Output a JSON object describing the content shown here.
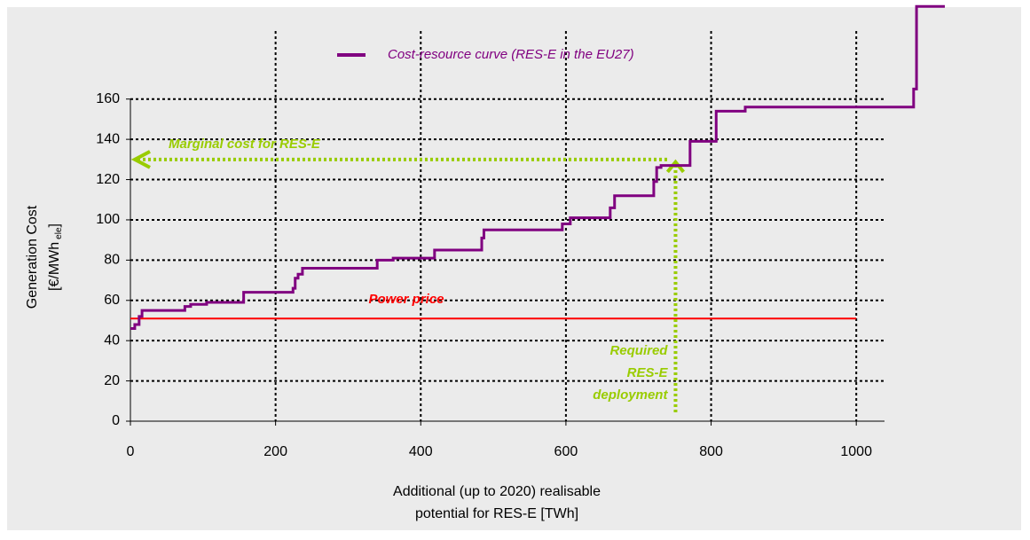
{
  "chart_data": {
    "type": "line",
    "step": "post",
    "y_label": {
      "line1": "Generation Cost",
      "unit_main": "[€/MWh",
      "unit_sub": "ele",
      "unit_end": "]"
    },
    "x_label": [
      "Additional (up to 2020) realisable",
      "potential for RES-E [TWh]"
    ],
    "x": [
      0,
      6,
      12,
      16,
      75,
      83,
      105,
      156,
      224,
      227,
      231,
      237,
      340,
      362,
      419,
      484,
      487,
      595,
      606,
      661,
      667,
      721,
      725,
      731,
      771,
      807,
      847,
      1079,
      1083,
      1122
    ],
    "series": [
      {
        "name": "Cost-resource curve (RES-E in the EU27)",
        "color": "#800080",
        "values": [
          46,
          48,
          52,
          55,
          57,
          58,
          59,
          64,
          66,
          71,
          73,
          76,
          80,
          81,
          85,
          91,
          95,
          98,
          101,
          106,
          112,
          119,
          126,
          127,
          139,
          154,
          156,
          165,
          206,
          206
        ]
      }
    ],
    "power_price": {
      "label": "Power price",
      "value": 51,
      "x_end": 1000,
      "color": "#ff0000"
    },
    "marginal_cost": {
      "label": "Marginal cost for RES-E",
      "value": 130,
      "color": "#99cc00"
    },
    "deployment": {
      "label": [
        "Required",
        "RES-E",
        "deployment"
      ],
      "value": 751,
      "color": "#99cc00"
    },
    "xlim": [
      0,
      1122
    ],
    "ylim": [
      0,
      207
    ],
    "xticks": [
      0,
      200,
      400,
      600,
      800,
      1000
    ],
    "yticks": [
      0,
      20,
      40,
      60,
      80,
      100,
      120,
      140,
      160
    ],
    "grid": true
  }
}
